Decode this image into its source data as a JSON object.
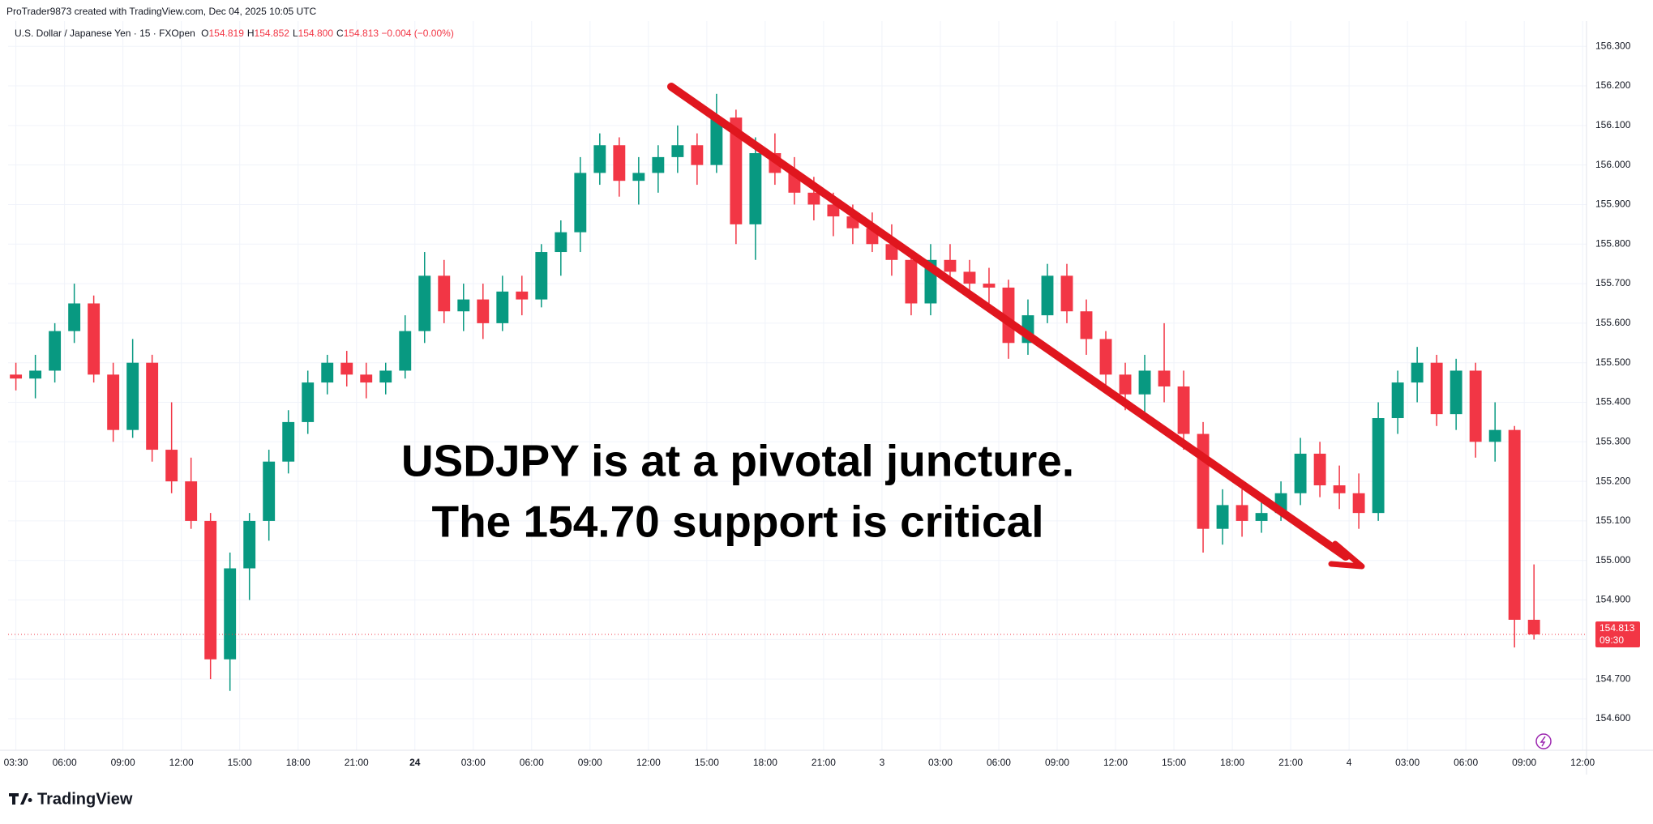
{
  "chart_data": {
    "type": "candlestick",
    "attribution": "ProTrader9873 created with TradingView.com, Dec 04, 2025 10:05 UTC",
    "symbol": "U.S. Dollar / Japanese Yen · 15 · FXOpen",
    "ohlc_legend": [
      {
        "key": "O",
        "value": "154.819"
      },
      {
        "key": "H",
        "value": "154.852"
      },
      {
        "key": "L",
        "value": "154.800"
      },
      {
        "key": "C",
        "value": "154.813"
      }
    ],
    "change": "−0.004 (−0.00%)",
    "annotation": [
      "USDJPY is at a pivotal juncture.",
      "The 154.70 support is critical"
    ],
    "last_price": {
      "label": "154.813",
      "countdown": "09:30"
    },
    "logo": "TradingView",
    "up_color": "#089981",
    "down_color": "#f23645",
    "grid": true,
    "x": [
      3.5,
      4.5,
      5.5,
      6.5,
      7.5,
      8.5,
      9.5,
      10.5,
      11.5,
      12.5,
      13.5,
      14.5,
      15.5,
      16.5,
      17.5,
      18.5,
      19.5,
      20.5,
      21.5,
      22.5,
      23.5,
      24.5,
      25.5,
      26.5,
      27.5,
      28.5,
      29.5,
      30.5,
      31.5,
      32.5,
      33.5,
      34.5,
      35.5,
      36.5,
      37.5,
      38.5,
      39.5,
      40.5,
      41.5,
      42.5,
      43.5,
      44.5,
      45.5,
      46.5,
      47.5,
      48.5,
      49.5,
      50.5,
      51.5,
      52.5,
      53.5,
      54.5,
      55.5,
      56.5,
      57.5,
      58.5,
      59.5,
      60.5,
      61.5,
      62.5,
      63.5,
      64.5,
      65.5,
      66.5,
      67.5,
      68.5,
      69.5,
      70.5,
      71.5,
      72.5,
      73.5,
      74.5,
      75.5,
      76.5,
      77.5,
      78.5,
      79.5,
      80.5,
      81.5
    ],
    "open": [
      155.47,
      155.46,
      155.48,
      155.58,
      155.65,
      155.47,
      155.33,
      155.5,
      155.28,
      155.2,
      155.1,
      154.75,
      154.98,
      155.1,
      155.25,
      155.35,
      155.45,
      155.5,
      155.47,
      155.45,
      155.48,
      155.58,
      155.72,
      155.63,
      155.66,
      155.6,
      155.68,
      155.66,
      155.78,
      155.83,
      155.98,
      156.05,
      155.96,
      155.98,
      156.02,
      156.05,
      156.0,
      156.12,
      155.85,
      156.03,
      155.98,
      155.93,
      155.9,
      155.87,
      155.84,
      155.8,
      155.76,
      155.65,
      155.76,
      155.73,
      155.7,
      155.69,
      155.55,
      155.62,
      155.72,
      155.63,
      155.56,
      155.47,
      155.42,
      155.48,
      155.44,
      155.32,
      155.08,
      155.14,
      155.1,
      155.12,
      155.17,
      155.27,
      155.19,
      155.17,
      155.12,
      155.36,
      155.45,
      155.5,
      155.37,
      155.48,
      155.3,
      155.33,
      154.85
    ],
    "high": [
      155.5,
      155.52,
      155.6,
      155.7,
      155.67,
      155.5,
      155.56,
      155.52,
      155.4,
      155.26,
      155.12,
      155.02,
      155.12,
      155.28,
      155.38,
      155.48,
      155.52,
      155.53,
      155.5,
      155.5,
      155.62,
      155.78,
      155.76,
      155.7,
      155.7,
      155.72,
      155.72,
      155.8,
      155.86,
      156.02,
      156.08,
      156.07,
      156.02,
      156.05,
      156.1,
      156.08,
      156.18,
      156.14,
      156.07,
      156.08,
      156.02,
      155.97,
      155.93,
      155.9,
      155.88,
      155.85,
      155.78,
      155.8,
      155.8,
      155.76,
      155.74,
      155.71,
      155.66,
      155.75,
      155.75,
      155.66,
      155.58,
      155.5,
      155.52,
      155.6,
      155.48,
      155.35,
      155.18,
      155.18,
      155.16,
      155.2,
      155.31,
      155.3,
      155.24,
      155.22,
      155.4,
      155.48,
      155.54,
      155.52,
      155.51,
      155.5,
      155.4,
      155.34,
      154.99
    ],
    "low": [
      155.43,
      155.41,
      155.45,
      155.55,
      155.45,
      155.3,
      155.31,
      155.25,
      155.17,
      155.08,
      154.7,
      154.67,
      154.9,
      155.05,
      155.22,
      155.32,
      155.42,
      155.44,
      155.41,
      155.42,
      155.46,
      155.55,
      155.6,
      155.58,
      155.56,
      155.58,
      155.62,
      155.64,
      155.72,
      155.78,
      155.95,
      155.92,
      155.9,
      155.93,
      155.98,
      155.95,
      155.98,
      155.8,
      155.76,
      155.95,
      155.9,
      155.86,
      155.82,
      155.8,
      155.78,
      155.72,
      155.62,
      155.62,
      155.7,
      155.66,
      155.65,
      155.51,
      155.52,
      155.6,
      155.6,
      155.52,
      155.44,
      155.38,
      155.36,
      155.4,
      155.28,
      155.02,
      155.04,
      155.06,
      155.07,
      155.1,
      155.14,
      155.16,
      155.13,
      155.08,
      155.1,
      155.32,
      155.4,
      155.34,
      155.33,
      155.26,
      155.25,
      154.78,
      154.8
    ],
    "close": [
      155.46,
      155.48,
      155.58,
      155.65,
      155.47,
      155.33,
      155.5,
      155.28,
      155.2,
      155.1,
      154.75,
      154.98,
      155.1,
      155.25,
      155.35,
      155.45,
      155.5,
      155.47,
      155.45,
      155.48,
      155.58,
      155.72,
      155.63,
      155.66,
      155.6,
      155.68,
      155.66,
      155.78,
      155.83,
      155.98,
      156.05,
      155.96,
      155.98,
      156.02,
      156.05,
      156.0,
      156.12,
      155.85,
      156.03,
      155.98,
      155.93,
      155.9,
      155.87,
      155.84,
      155.8,
      155.76,
      155.65,
      155.76,
      155.73,
      155.7,
      155.69,
      155.55,
      155.62,
      155.72,
      155.63,
      155.56,
      155.47,
      155.42,
      155.48,
      155.44,
      155.32,
      155.08,
      155.14,
      155.1,
      155.12,
      155.17,
      155.27,
      155.19,
      155.17,
      155.12,
      155.36,
      155.45,
      155.5,
      155.37,
      155.48,
      155.3,
      155.33,
      154.85,
      154.813
    ],
    "xlim": [
      3.1,
      84.2
    ],
    "xticks": [
      {
        "value": 3.5,
        "label": "03:30"
      },
      {
        "value": 6,
        "label": "06:00"
      },
      {
        "value": 9,
        "label": "09:00"
      },
      {
        "value": 12,
        "label": "12:00"
      },
      {
        "value": 15,
        "label": "15:00"
      },
      {
        "value": 18,
        "label": "18:00"
      },
      {
        "value": 21,
        "label": "21:00"
      },
      24,
      {
        "value": 27,
        "label": "03:00"
      },
      {
        "value": 30,
        "label": "06:00"
      },
      {
        "value": 33,
        "label": "09:00"
      },
      {
        "value": 36,
        "label": "12:00"
      },
      {
        "value": 39,
        "label": "15:00"
      },
      {
        "value": 42,
        "label": "18:00"
      },
      {
        "value": 45,
        "label": "21:00"
      },
      {
        "value": 48,
        "label": "3"
      },
      {
        "value": 51,
        "label": "03:00"
      },
      {
        "value": 54,
        "label": "06:00"
      },
      {
        "value": 57,
        "label": "09:00"
      },
      {
        "value": 60,
        "label": "12:00"
      },
      {
        "value": 63,
        "label": "15:00"
      },
      {
        "value": 66,
        "label": "18:00"
      },
      {
        "value": 69,
        "label": "21:00"
      },
      {
        "value": 72,
        "label": "4"
      },
      {
        "value": 75,
        "label": "03:00"
      },
      {
        "value": 78,
        "label": "06:00"
      },
      {
        "value": 81,
        "label": "09:00"
      },
      {
        "value": 84,
        "label": "12:00"
      }
    ],
    "ylim": [
      154.52,
      156.364
    ],
    "yticks": [
      {
        "value": 154.6,
        "label": "154.600"
      },
      {
        "value": 154.7,
        "label": "154.700"
      },
      {
        "value": 154.8,
        "label": "154.800"
      },
      {
        "value": 154.9,
        "label": "154.900"
      },
      {
        "value": 155.0,
        "label": "155.000"
      },
      {
        "value": 155.1,
        "label": "155.100"
      },
      {
        "value": 155.2,
        "label": "155.200"
      },
      {
        "value": 155.3,
        "label": "155.300"
      },
      {
        "value": 155.4,
        "label": "155.400"
      },
      {
        "value": 155.5,
        "label": "155.500"
      },
      {
        "value": 155.6,
        "label": "155.600"
      },
      {
        "value": 155.7,
        "label": "155.700"
      },
      {
        "value": 155.8,
        "label": "155.800"
      },
      {
        "value": 155.9,
        "label": "155.900"
      },
      {
        "value": 156.0,
        "label": "156.000"
      },
      {
        "value": 156.1,
        "label": "156.100"
      },
      {
        "value": 156.2,
        "label": "156.200"
      },
      {
        "value": 156.3,
        "label": "156.300"
      }
    ]
  }
}
